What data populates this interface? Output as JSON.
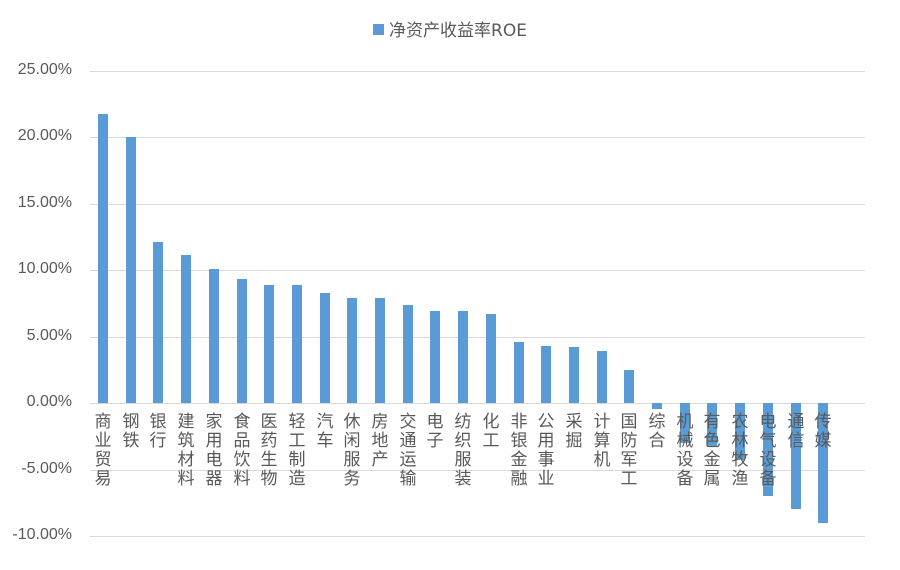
{
  "legend": {
    "label": "净资产收益率ROE",
    "color": "#5b9bd5"
  },
  "chart_data": {
    "type": "bar",
    "title": "",
    "legend": [
      "净资产收益率ROE"
    ],
    "legend_position": "top",
    "xlabel": "",
    "ylabel": "",
    "ylim": [
      -10,
      25
    ],
    "yticks": [
      "25.00%",
      "20.00%",
      "15.00%",
      "10.00%",
      "5.00%",
      "0.00%",
      "-5.00%",
      "-10.00%"
    ],
    "grid": true,
    "categories": [
      "商业贸易",
      "钢铁",
      "银行",
      "建筑材料",
      "家用电器",
      "食品饮料",
      "医药生物",
      "轻工制造",
      "汽车",
      "休闲服务",
      "房地产",
      "交通运输",
      "电子",
      "纺织服装",
      "化工",
      "非银金融",
      "公用事业",
      "采掘",
      "计算机",
      "国防军工",
      "综合",
      "机械设备",
      "有色金属",
      "农林牧渔",
      "电气设备",
      "通信",
      "传媒"
    ],
    "series": [
      {
        "name": "净资产收益率ROE",
        "color": "#5b9bd5",
        "values": [
          21.7,
          20.0,
          12.1,
          11.1,
          10.1,
          9.3,
          8.9,
          8.9,
          8.3,
          7.9,
          7.9,
          7.4,
          6.9,
          6.9,
          6.7,
          4.6,
          4.3,
          4.2,
          3.9,
          2.5,
          -0.45,
          -3.0,
          -3.3,
          -4.3,
          -7.0,
          -8.0,
          -9.0
        ]
      }
    ]
  }
}
